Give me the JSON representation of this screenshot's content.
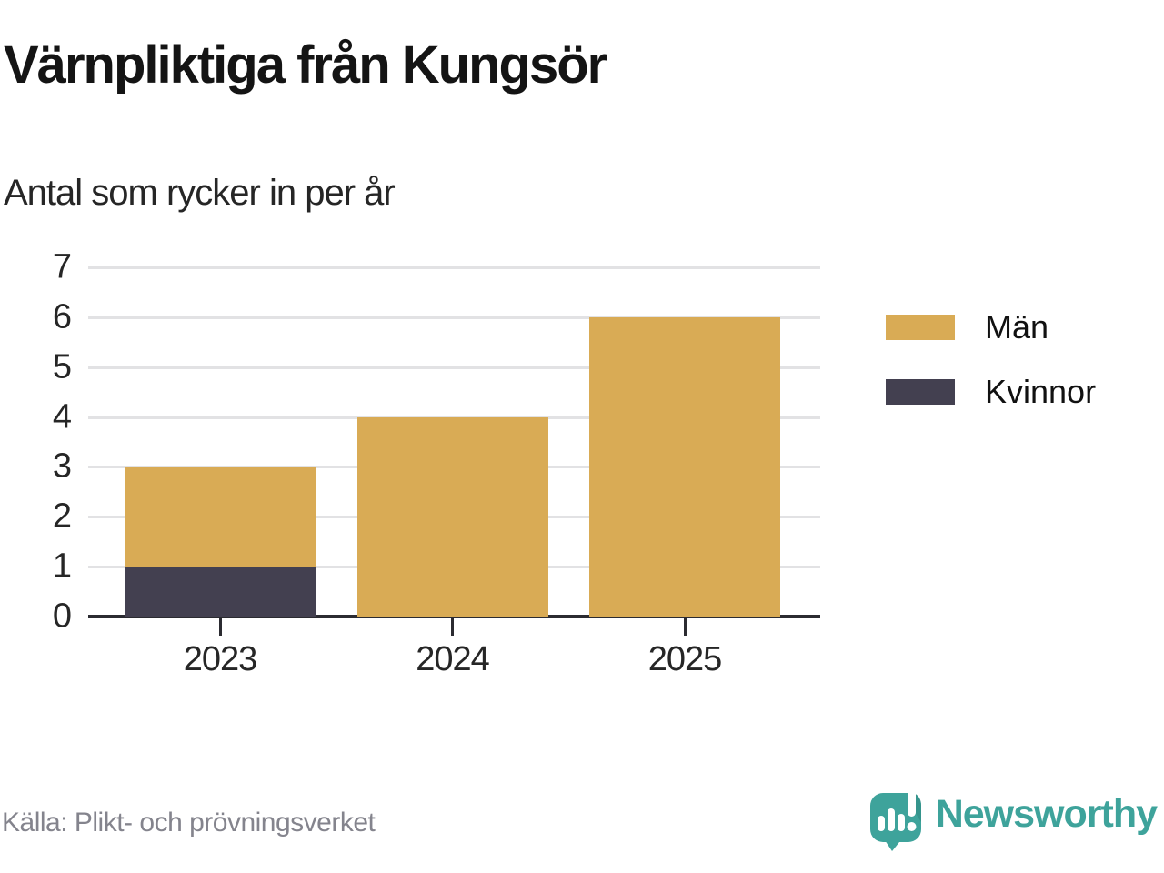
{
  "title": "Värnpliktiga från Kungsör",
  "subtitle": "Antal som rycker in per år",
  "source": "Källa: Plikt- och prövningsverket",
  "brand": {
    "name": "Newsworthy",
    "icon": "newsworthy-speech-bubble-chart-icon",
    "color": "#3ea39b"
  },
  "colors": {
    "men": "#d9ab55",
    "women": "#434050",
    "gridline": "#e2e2e4",
    "axis": "#2b2b31",
    "source_text": "#84848d",
    "brand_teal": "#3ea39b"
  },
  "legend": [
    {
      "label": "Män",
      "color": "#d9ab55"
    },
    {
      "label": "Kvinnor",
      "color": "#434050"
    }
  ],
  "chart_data": {
    "type": "bar",
    "stacked": true,
    "title": "Värnpliktiga från Kungsör",
    "subtitle": "Antal som rycker in per år",
    "categories": [
      "2023",
      "2024",
      "2025"
    ],
    "series": [
      {
        "name": "Kvinnor",
        "color": "#434050",
        "values": [
          1,
          0,
          0
        ]
      },
      {
        "name": "Män",
        "color": "#d9ab55",
        "values": [
          2,
          4,
          6
        ]
      }
    ],
    "totals": [
      3,
      4,
      6
    ],
    "xlabel": "",
    "ylabel": "Antal som rycker in per år",
    "ylim": [
      0,
      7
    ],
    "yticks": [
      0,
      1,
      2,
      3,
      4,
      5,
      6,
      7
    ],
    "grid": true,
    "legend_position": "right",
    "source": "Källa: Plikt- och prövningsverket"
  }
}
